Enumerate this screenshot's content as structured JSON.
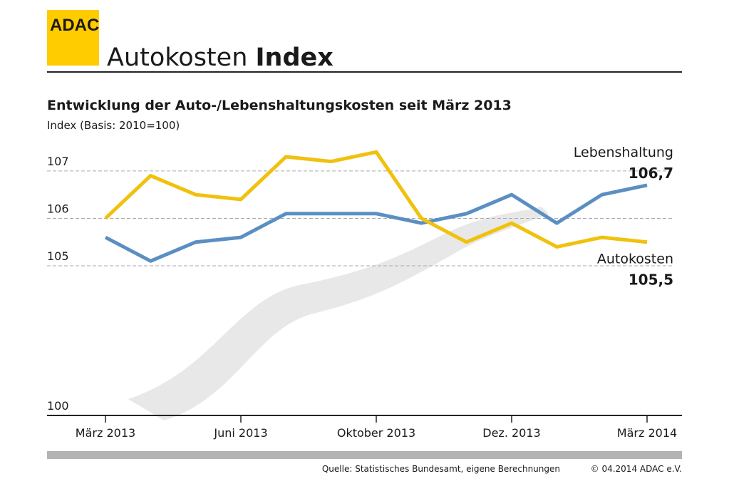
{
  "header": {
    "logo": "ADAC",
    "title_light": "Autokosten",
    "title_bold": "Index"
  },
  "chart_data": {
    "type": "line",
    "title": "Entwicklung der Auto-/Lebenshaltungskosten seit März 2013",
    "subtitle": "Index (Basis: 2010=100)",
    "categories": [
      "März 2013",
      null,
      null,
      "Juni 2013",
      null,
      null,
      "Oktober 2013",
      null,
      null,
      "Dez. 2013",
      null,
      null,
      "März 2014"
    ],
    "series": [
      {
        "name": "Lebenshaltung",
        "color": "#5b8fc2",
        "values": [
          105.6,
          105.1,
          105.5,
          105.6,
          106.1,
          106.1,
          106.1,
          105.9,
          106.1,
          106.5,
          105.9,
          106.5,
          106.7
        ],
        "value_labels": [
          null,
          null,
          null,
          null,
          null,
          null,
          null,
          null,
          null,
          null,
          null,
          null,
          "106,7"
        ]
      },
      {
        "name": "Autokosten",
        "color": "#f0c10d",
        "values": [
          106.0,
          106.9,
          106.5,
          106.4,
          107.3,
          107.2,
          107.4,
          106.0,
          105.5,
          105.9,
          105.4,
          105.6,
          105.5
        ],
        "value_labels": [
          null,
          null,
          null,
          null,
          null,
          null,
          null,
          null,
          null,
          null,
          null,
          null,
          "105,5"
        ]
      }
    ],
    "ylim": [
      100,
      107.6
    ],
    "yticks": [
      100,
      105,
      106,
      107
    ],
    "axis_break": true,
    "grid": true
  },
  "footer": {
    "source": "Quelle: Statistisches Bundesamt, eigene Berechnungen",
    "copyright": "© 04.2014  ADAC e.V."
  }
}
